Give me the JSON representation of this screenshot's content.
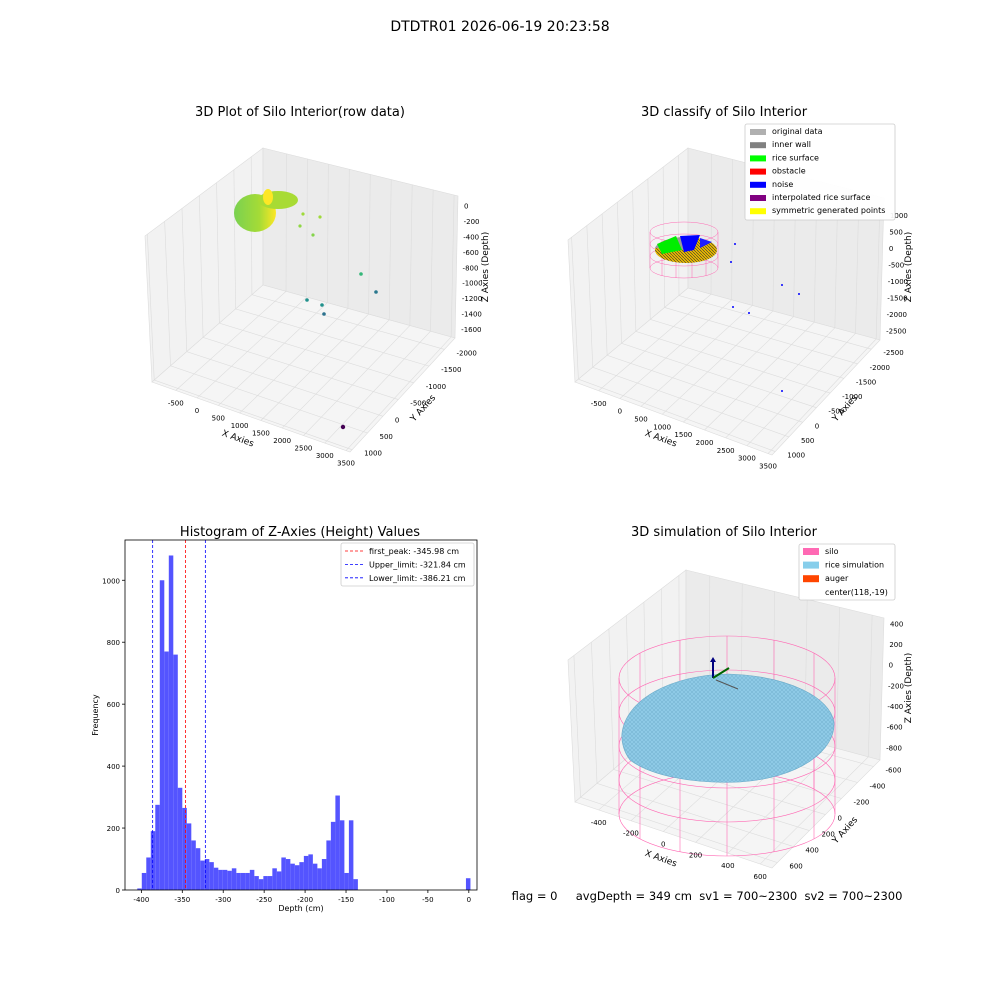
{
  "figure": {
    "suptitle": "DTDTR01 2026-06-19 20:23:58",
    "status_text": "flag = 0     avgDepth = 349 cm  sv1 = 700~2300  sv2 = 700~2300"
  },
  "chart_data": [
    {
      "type": "scatter",
      "projection": "3d",
      "title": "3D Plot of Silo Interior(row data)",
      "xlabel": "X Axies",
      "ylabel": "Y Axies",
      "zlabel": "Z Axies (Depth)",
      "x_ticks": [
        "-500",
        "0",
        "500",
        "1000",
        "1500",
        "2000",
        "2500",
        "3000",
        "3500"
      ],
      "y_ticks": [
        "1000",
        "500",
        "0",
        "-500",
        "-1000",
        "-1500",
        "-2000"
      ],
      "z_ticks": [
        "0",
        "-200",
        "-400",
        "-600",
        "-800",
        "-1000",
        "-1200",
        "-1400",
        "-1600"
      ],
      "colormap": "viridis",
      "grid": true
    },
    {
      "type": "scatter",
      "projection": "3d",
      "title": "3D classify of Silo Interior",
      "xlabel": "X Axies",
      "ylabel": "Y Axies",
      "zlabel": "Z Axies (Depth)",
      "x_ticks": [
        "-500",
        "0",
        "500",
        "1000",
        "1500",
        "2000",
        "2500",
        "3000",
        "3500"
      ],
      "y_ticks": [
        "1000",
        "500",
        "0",
        "-500",
        "-1000",
        "-1500",
        "-2000",
        "-2500"
      ],
      "z_ticks": [
        "1000",
        "500",
        "0",
        "-500",
        "-1000",
        "-1500",
        "-2000",
        "-2500"
      ],
      "legend_position": "top-right",
      "legend": [
        {
          "label": "original data",
          "color": "#b0b0b0"
        },
        {
          "label": "inner wall",
          "color": "#808080"
        },
        {
          "label": "rice surface",
          "color": "#00ff00"
        },
        {
          "label": "obstacle",
          "color": "#ff0000"
        },
        {
          "label": "noise",
          "color": "#0000ff"
        },
        {
          "label": "interpolated rice surface",
          "color": "#800080"
        },
        {
          "label": "symmetric generated points",
          "color": "#ffff00"
        }
      ],
      "grid": true
    },
    {
      "type": "bar",
      "title": "Histogram of Z-Axies (Height) Values",
      "xlabel": "Depth (cm)",
      "ylabel": "Frequency",
      "xlim": [
        -420,
        10
      ],
      "ylim": [
        0,
        1130
      ],
      "x_ticks": [
        -400,
        -350,
        -300,
        -250,
        -200,
        -150,
        -100,
        -50,
        0
      ],
      "y_ticks": [
        0,
        200,
        400,
        600,
        800,
        1000
      ],
      "bar_color": "#4b4bff",
      "bin_width": 5.5,
      "bin_starts": [
        -405,
        -399.5,
        -394,
        -388.5,
        -383,
        -377.5,
        -372,
        -366.5,
        -361,
        -355.5,
        -350,
        -344.5,
        -339,
        -333.5,
        -328,
        -322.5,
        -317,
        -311.5,
        -306,
        -300.5,
        -295,
        -289.5,
        -284,
        -278.5,
        -273,
        -267.5,
        -262,
        -256.5,
        -251,
        -245.5,
        -240,
        -234.5,
        -229,
        -223.5,
        -218,
        -212.5,
        -207,
        -201.5,
        -196,
        -190.5,
        -185,
        -179.5,
        -174,
        -168.5,
        -163,
        -157.5,
        -152,
        -146.5,
        -141,
        -135.5,
        -130,
        -124.5,
        -119,
        -113.5,
        -108,
        -102.5,
        -97,
        -91.5,
        -86,
        -80.5,
        -75,
        -69.5,
        -64,
        -58.5,
        -53,
        -47.5,
        -42,
        -36.5,
        -31,
        -25.5,
        -20,
        -14.5,
        -9,
        -3.5
      ],
      "counts": [
        5,
        55,
        105,
        190,
        275,
        1000,
        770,
        1080,
        760,
        330,
        265,
        215,
        160,
        135,
        95,
        100,
        90,
        72,
        65,
        65,
        62,
        70,
        55,
        55,
        55,
        65,
        45,
        35,
        45,
        45,
        70,
        60,
        105,
        100,
        85,
        80,
        90,
        110,
        115,
        85,
        70,
        100,
        160,
        220,
        305,
        225,
        55,
        225,
        35,
        0,
        0,
        0,
        0,
        0,
        0,
        0,
        0,
        0,
        0,
        0,
        0,
        0,
        0,
        0,
        0,
        0,
        0,
        0,
        0,
        0,
        0,
        0,
        0,
        38
      ],
      "vlines": [
        {
          "label": "first_peak: -345.98 cm",
          "x": -345.98,
          "color": "#ff0000"
        },
        {
          "label": "Upper_limit: -321.84 cm",
          "x": -321.84,
          "color": "#0000ff"
        },
        {
          "label": "Lower_limit: -386.21 cm",
          "x": -386.21,
          "color": "#0000ff"
        }
      ],
      "legend_position": "top-right"
    },
    {
      "type": "surface",
      "projection": "3d",
      "title": "3D simulation of Silo Interior",
      "xlabel": "X Axies",
      "ylabel": "Y Axies",
      "zlabel": "Z Axies (Depth)",
      "x_ticks": [
        "-400",
        "-200",
        "0",
        "200",
        "400",
        "600"
      ],
      "y_ticks": [
        "600",
        "400",
        "200",
        "0",
        "-200",
        "-400",
        "-600"
      ],
      "z_ticks": [
        "400",
        "200",
        "0",
        "-200",
        "-400",
        "-600",
        "-800"
      ],
      "legend_position": "top-right",
      "legend": [
        {
          "label": "silo",
          "color": "#ff69b4"
        },
        {
          "label": "rice simulation",
          "color": "#87ceeb"
        },
        {
          "label": "auger",
          "color": "#ff4500"
        },
        {
          "label": "center(118,-19)",
          "color": ""
        }
      ],
      "grid": true
    }
  ]
}
